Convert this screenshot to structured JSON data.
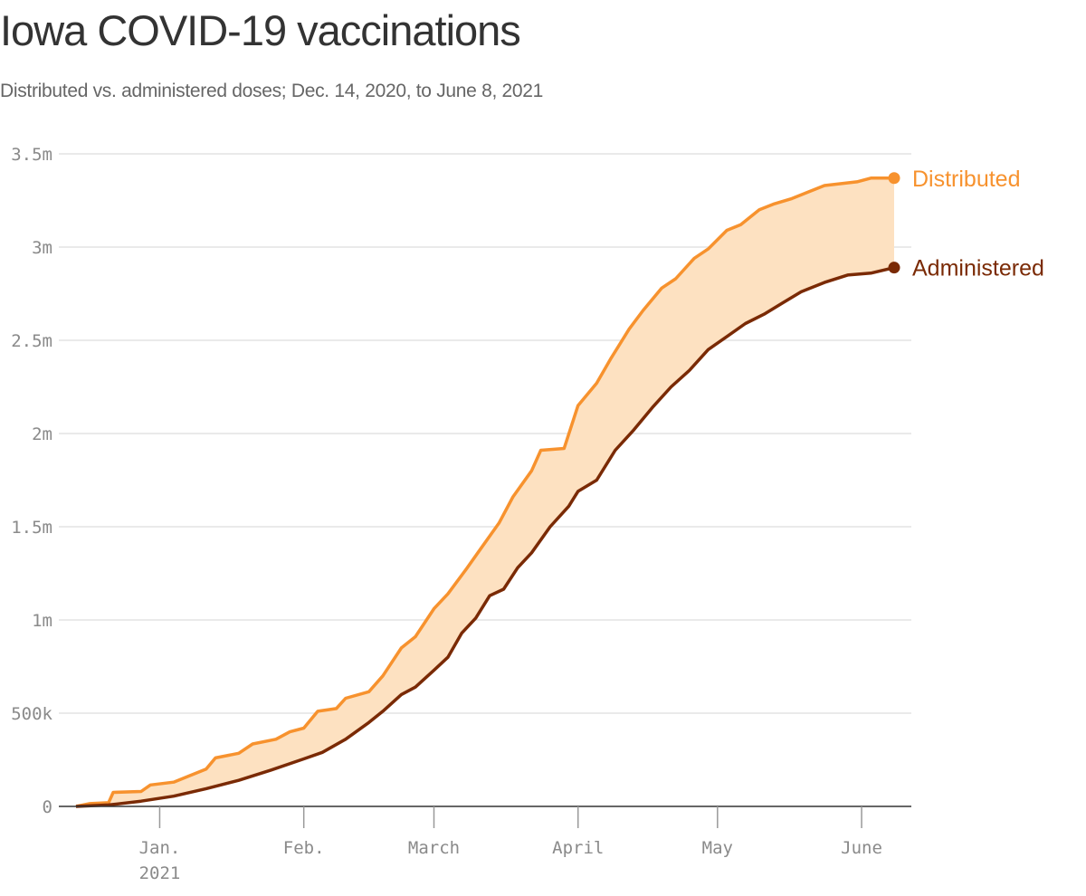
{
  "chart_data": {
    "type": "area",
    "title": "Iowa COVID-19 vaccinations",
    "subtitle": "Distributed vs. administered doses; Dec. 14, 2020, to June 8, 2021",
    "x_range": [
      "2020-12-14",
      "2021-06-08"
    ],
    "ylim": [
      0,
      3500000
    ],
    "y_ticks": [
      {
        "value": 0,
        "label": "0"
      },
      {
        "value": 500000,
        "label": "500k"
      },
      {
        "value": 1000000,
        "label": "1m"
      },
      {
        "value": 1500000,
        "label": "1.5m"
      },
      {
        "value": 2000000,
        "label": "2m"
      },
      {
        "value": 2500000,
        "label": "2.5m"
      },
      {
        "value": 3000000,
        "label": "3m"
      },
      {
        "value": 3500000,
        "label": "3.5m"
      }
    ],
    "x_ticks": [
      {
        "date": "2021-01-01",
        "label": "Jan.",
        "sublabel": "2021"
      },
      {
        "date": "2021-02-01",
        "label": "Feb.",
        "sublabel": ""
      },
      {
        "date": "2021-03-01",
        "label": "March",
        "sublabel": ""
      },
      {
        "date": "2021-04-01",
        "label": "April",
        "sublabel": ""
      },
      {
        "date": "2021-05-01",
        "label": "May",
        "sublabel": ""
      },
      {
        "date": "2021-06-01",
        "label": "June",
        "sublabel": ""
      }
    ],
    "grid": true,
    "fill_between_series": "#fde1c1",
    "series": [
      {
        "name": "Distributed",
        "color": "#f7922e",
        "points": [
          [
            "2020-12-14",
            0
          ],
          [
            "2020-12-17",
            15000
          ],
          [
            "2020-12-21",
            20000
          ],
          [
            "2020-12-22",
            75000
          ],
          [
            "2020-12-28",
            80000
          ],
          [
            "2020-12-30",
            115000
          ],
          [
            "2021-01-04",
            130000
          ],
          [
            "2021-01-07",
            160000
          ],
          [
            "2021-01-11",
            200000
          ],
          [
            "2021-01-13",
            260000
          ],
          [
            "2021-01-18",
            285000
          ],
          [
            "2021-01-21",
            335000
          ],
          [
            "2021-01-26",
            360000
          ],
          [
            "2021-01-29",
            400000
          ],
          [
            "2021-02-01",
            420000
          ],
          [
            "2021-02-04",
            510000
          ],
          [
            "2021-02-08",
            525000
          ],
          [
            "2021-02-10",
            580000
          ],
          [
            "2021-02-15",
            615000
          ],
          [
            "2021-02-18",
            700000
          ],
          [
            "2021-02-22",
            850000
          ],
          [
            "2021-02-25",
            910000
          ],
          [
            "2021-03-01",
            1060000
          ],
          [
            "2021-03-04",
            1140000
          ],
          [
            "2021-03-08",
            1275000
          ],
          [
            "2021-03-11",
            1380000
          ],
          [
            "2021-03-15",
            1520000
          ],
          [
            "2021-03-18",
            1660000
          ],
          [
            "2021-03-22",
            1800000
          ],
          [
            "2021-03-24",
            1910000
          ],
          [
            "2021-03-29",
            1920000
          ],
          [
            "2021-04-01",
            2150000
          ],
          [
            "2021-04-05",
            2270000
          ],
          [
            "2021-04-08",
            2400000
          ],
          [
            "2021-04-12",
            2560000
          ],
          [
            "2021-04-15",
            2660000
          ],
          [
            "2021-04-19",
            2780000
          ],
          [
            "2021-04-22",
            2830000
          ],
          [
            "2021-04-26",
            2940000
          ],
          [
            "2021-04-29",
            2990000
          ],
          [
            "2021-05-03",
            3090000
          ],
          [
            "2021-05-06",
            3120000
          ],
          [
            "2021-05-10",
            3200000
          ],
          [
            "2021-05-13",
            3230000
          ],
          [
            "2021-05-17",
            3260000
          ],
          [
            "2021-05-24",
            3330000
          ],
          [
            "2021-05-31",
            3350000
          ],
          [
            "2021-06-03",
            3370000
          ],
          [
            "2021-06-08",
            3370000
          ]
        ]
      },
      {
        "name": "Administered",
        "color": "#7a2a05",
        "points": [
          [
            "2020-12-14",
            0
          ],
          [
            "2020-12-21",
            8000
          ],
          [
            "2020-12-28",
            28000
          ],
          [
            "2021-01-04",
            55000
          ],
          [
            "2021-01-11",
            95000
          ],
          [
            "2021-01-18",
            140000
          ],
          [
            "2021-01-25",
            195000
          ],
          [
            "2021-02-01",
            255000
          ],
          [
            "2021-02-05",
            290000
          ],
          [
            "2021-02-10",
            360000
          ],
          [
            "2021-02-15",
            450000
          ],
          [
            "2021-02-18",
            510000
          ],
          [
            "2021-02-22",
            600000
          ],
          [
            "2021-02-25",
            640000
          ],
          [
            "2021-03-01",
            730000
          ],
          [
            "2021-03-04",
            800000
          ],
          [
            "2021-03-07",
            930000
          ],
          [
            "2021-03-10",
            1010000
          ],
          [
            "2021-03-13",
            1130000
          ],
          [
            "2021-03-16",
            1165000
          ],
          [
            "2021-03-19",
            1280000
          ],
          [
            "2021-03-22",
            1360000
          ],
          [
            "2021-03-26",
            1500000
          ],
          [
            "2021-03-30",
            1610000
          ],
          [
            "2021-04-01",
            1690000
          ],
          [
            "2021-04-05",
            1750000
          ],
          [
            "2021-04-09",
            1910000
          ],
          [
            "2021-04-13",
            2020000
          ],
          [
            "2021-04-17",
            2140000
          ],
          [
            "2021-04-21",
            2250000
          ],
          [
            "2021-04-25",
            2340000
          ],
          [
            "2021-04-29",
            2450000
          ],
          [
            "2021-05-03",
            2520000
          ],
          [
            "2021-05-07",
            2590000
          ],
          [
            "2021-05-11",
            2640000
          ],
          [
            "2021-05-15",
            2700000
          ],
          [
            "2021-05-19",
            2760000
          ],
          [
            "2021-05-24",
            2810000
          ],
          [
            "2021-05-29",
            2850000
          ],
          [
            "2021-06-03",
            2860000
          ],
          [
            "2021-06-08",
            2890000
          ]
        ]
      }
    ]
  }
}
